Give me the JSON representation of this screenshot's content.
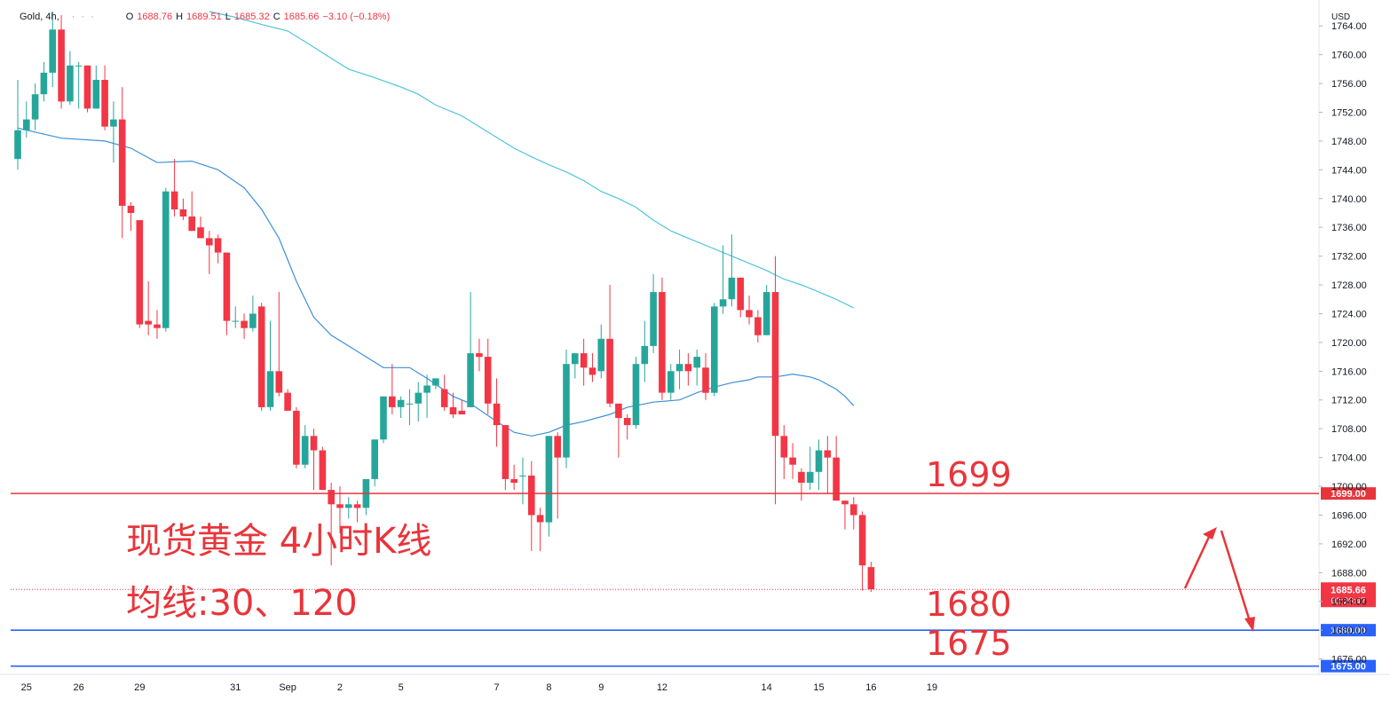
{
  "header": {
    "symbol": "Gold, 4h,",
    "dots": "· · ·",
    "o_label": "O",
    "o_value": "1688.76",
    "h_label": "H",
    "h_value": "1689.51",
    "l_label": "L",
    "l_value": "1685.32",
    "c_label": "C",
    "c_value": "1685.66",
    "change": "−3.10 (−0.18%)"
  },
  "annotations": {
    "title_line1": "现货黄金 4小时K线",
    "title_line2": "均线:30、120",
    "level_1699": "1699",
    "level_1680": "1680",
    "level_1675": "1675"
  },
  "colors": {
    "up": "#26a69a",
    "down": "#f23645",
    "red_line": "#e8353b",
    "blue_line": "#2962ff",
    "ma30": "#3d8fd9",
    "ma120": "#4fc4dc",
    "annotation": "#e8353b"
  },
  "chart_data": {
    "type": "candlestick",
    "currency": "USD",
    "timeframe": "4h",
    "ylim": [
      1672,
      1766
    ],
    "y_ticks": [
      1676,
      1680,
      1684,
      1688,
      1692,
      1696,
      1700,
      1704,
      1708,
      1712,
      1716,
      1720,
      1724,
      1728,
      1732,
      1736,
      1740,
      1744,
      1748,
      1752,
      1756,
      1760,
      1764
    ],
    "x_ticks": [
      {
        "label": "25",
        "index": 1
      },
      {
        "label": "26",
        "index": 7
      },
      {
        "label": "29",
        "index": 14
      },
      {
        "label": "31",
        "index": 25
      },
      {
        "label": "Sep",
        "index": 31
      },
      {
        "label": "2",
        "index": 37
      },
      {
        "label": "5",
        "index": 44
      },
      {
        "label": "7",
        "index": 55
      },
      {
        "label": "8",
        "index": 61
      },
      {
        "label": "9",
        "index": 67
      },
      {
        "label": "12",
        "index": 74
      },
      {
        "label": "14",
        "index": 86
      },
      {
        "label": "15",
        "index": 92
      },
      {
        "label": "16",
        "index": 98
      },
      {
        "label": "19",
        "index": 105
      }
    ],
    "candles": [
      {
        "o": 1745.5,
        "h": 1756.5,
        "l": 1744,
        "c": 1749.5
      },
      {
        "o": 1749.5,
        "h": 1753.5,
        "l": 1748.5,
        "c": 1751
      },
      {
        "o": 1751,
        "h": 1756,
        "l": 1749.5,
        "c": 1754.5
      },
      {
        "o": 1754.5,
        "h": 1759,
        "l": 1753.5,
        "c": 1757.5
      },
      {
        "o": 1757.5,
        "h": 1766,
        "l": 1755.5,
        "c": 1763.5
      },
      {
        "o": 1763.5,
        "h": 1765.5,
        "l": 1752.5,
        "c": 1753.5
      },
      {
        "o": 1753.5,
        "h": 1760.5,
        "l": 1753,
        "c": 1758.5
      },
      {
        "o": 1758.5,
        "h": 1759,
        "l": 1752.5,
        "c": 1758.5
      },
      {
        "o": 1758.5,
        "h": 1758.5,
        "l": 1752,
        "c": 1752.5
      },
      {
        "o": 1752.5,
        "h": 1758.5,
        "l": 1752.5,
        "c": 1756.5
      },
      {
        "o": 1756.5,
        "h": 1758.5,
        "l": 1749.5,
        "c": 1750
      },
      {
        "o": 1750,
        "h": 1753.5,
        "l": 1745,
        "c": 1751
      },
      {
        "o": 1751,
        "h": 1755.5,
        "l": 1734.5,
        "c": 1739
      },
      {
        "o": 1739,
        "h": 1739.5,
        "l": 1735.5,
        "c": 1738
      },
      {
        "o": 1737,
        "h": 1737,
        "l": 1722,
        "c": 1722.5
      },
      {
        "o": 1723,
        "h": 1728.5,
        "l": 1721,
        "c": 1722.5
      },
      {
        "o": 1722.5,
        "h": 1724.5,
        "l": 1720.5,
        "c": 1722
      },
      {
        "o": 1722,
        "h": 1741.5,
        "l": 1721.5,
        "c": 1741
      },
      {
        "o": 1741,
        "h": 1745.5,
        "l": 1737.5,
        "c": 1738.5
      },
      {
        "o": 1738.5,
        "h": 1740,
        "l": 1737,
        "c": 1737.5
      },
      {
        "o": 1737.5,
        "h": 1741,
        "l": 1735.5,
        "c": 1735.5
      },
      {
        "o": 1736,
        "h": 1737.5,
        "l": 1734.5,
        "c": 1734.5
      },
      {
        "o": 1734.5,
        "h": 1735.5,
        "l": 1729.5,
        "c": 1733.5
      },
      {
        "o": 1734.5,
        "h": 1735,
        "l": 1731,
        "c": 1732.5
      },
      {
        "o": 1732.5,
        "h": 1732.5,
        "l": 1721,
        "c": 1723
      },
      {
        "o": 1723,
        "h": 1725,
        "l": 1722,
        "c": 1723
      },
      {
        "o": 1723,
        "h": 1724,
        "l": 1720.5,
        "c": 1722
      },
      {
        "o": 1722,
        "h": 1726.5,
        "l": 1721.5,
        "c": 1724
      },
      {
        "o": 1725,
        "h": 1725.5,
        "l": 1710.5,
        "c": 1711
      },
      {
        "o": 1711,
        "h": 1723,
        "l": 1710.5,
        "c": 1716
      },
      {
        "o": 1716,
        "h": 1727,
        "l": 1712.5,
        "c": 1713
      },
      {
        "o": 1713,
        "h": 1713.5,
        "l": 1710.5,
        "c": 1710.5
      },
      {
        "o": 1710.5,
        "h": 1711,
        "l": 1702.5,
        "c": 1703
      },
      {
        "o": 1703,
        "h": 1708.5,
        "l": 1702.5,
        "c": 1707
      },
      {
        "o": 1707,
        "h": 1708,
        "l": 1699.5,
        "c": 1705
      },
      {
        "o": 1705,
        "h": 1705.5,
        "l": 1699.5,
        "c": 1699.5
      },
      {
        "o": 1699.5,
        "h": 1700.5,
        "l": 1689,
        "c": 1697.5
      },
      {
        "o": 1697.5,
        "h": 1700,
        "l": 1693.5,
        "c": 1697
      },
      {
        "o": 1697,
        "h": 1698.5,
        "l": 1695.5,
        "c": 1697.5
      },
      {
        "o": 1697.5,
        "h": 1698,
        "l": 1695,
        "c": 1697
      },
      {
        "o": 1697,
        "h": 1701,
        "l": 1696,
        "c": 1701
      },
      {
        "o": 1701,
        "h": 1706.5,
        "l": 1700,
        "c": 1706.5
      },
      {
        "o": 1706.5,
        "h": 1712.5,
        "l": 1706,
        "c": 1712.5
      },
      {
        "o": 1712.5,
        "h": 1717,
        "l": 1710,
        "c": 1711
      },
      {
        "o": 1711,
        "h": 1712.5,
        "l": 1709.5,
        "c": 1712
      },
      {
        "o": 1711.5,
        "h": 1713.5,
        "l": 1708.5,
        "c": 1711.5
      },
      {
        "o": 1711.5,
        "h": 1714.5,
        "l": 1709,
        "c": 1713
      },
      {
        "o": 1713,
        "h": 1715.5,
        "l": 1709.5,
        "c": 1714
      },
      {
        "o": 1714,
        "h": 1715,
        "l": 1713.5,
        "c": 1715
      },
      {
        "o": 1713.5,
        "h": 1715.5,
        "l": 1710.5,
        "c": 1711
      },
      {
        "o": 1711,
        "h": 1713,
        "l": 1709.5,
        "c": 1710
      },
      {
        "o": 1710.5,
        "h": 1712,
        "l": 1710,
        "c": 1710
      },
      {
        "o": 1711,
        "h": 1727,
        "l": 1711,
        "c": 1718.5
      },
      {
        "o": 1718.5,
        "h": 1720.5,
        "l": 1716,
        "c": 1718
      },
      {
        "o": 1718,
        "h": 1720.5,
        "l": 1710,
        "c": 1711.5
      },
      {
        "o": 1711.5,
        "h": 1715,
        "l": 1705.5,
        "c": 1708.5
      },
      {
        "o": 1708.5,
        "h": 1708.5,
        "l": 1699.5,
        "c": 1701
      },
      {
        "o": 1701,
        "h": 1703,
        "l": 1699.5,
        "c": 1700.5
      },
      {
        "o": 1701.5,
        "h": 1704,
        "l": 1697.5,
        "c": 1701.5
      },
      {
        "o": 1701.5,
        "h": 1703.5,
        "l": 1691,
        "c": 1696
      },
      {
        "o": 1696,
        "h": 1697,
        "l": 1691,
        "c": 1695
      },
      {
        "o": 1695,
        "h": 1707,
        "l": 1693,
        "c": 1707
      },
      {
        "o": 1707,
        "h": 1707.5,
        "l": 1695.5,
        "c": 1704
      },
      {
        "o": 1704,
        "h": 1719,
        "l": 1702.5,
        "c": 1717
      },
      {
        "o": 1717,
        "h": 1718.5,
        "l": 1715,
        "c": 1718.5
      },
      {
        "o": 1718.5,
        "h": 1720.5,
        "l": 1714,
        "c": 1716.5
      },
      {
        "o": 1716.5,
        "h": 1718.5,
        "l": 1714.5,
        "c": 1715.5
      },
      {
        "o": 1716,
        "h": 1722.5,
        "l": 1715,
        "c": 1720.5
      },
      {
        "o": 1720.5,
        "h": 1728,
        "l": 1711,
        "c": 1711.5
      },
      {
        "o": 1711.5,
        "h": 1711.5,
        "l": 1704,
        "c": 1709.5
      },
      {
        "o": 1709.5,
        "h": 1710,
        "l": 1706.5,
        "c": 1708.5
      },
      {
        "o": 1708.5,
        "h": 1718,
        "l": 1708,
        "c": 1717
      },
      {
        "o": 1717,
        "h": 1723,
        "l": 1714.5,
        "c": 1719.5
      },
      {
        "o": 1719.5,
        "h": 1729.5,
        "l": 1718.5,
        "c": 1727
      },
      {
        "o": 1727,
        "h": 1729,
        "l": 1712,
        "c": 1713
      },
      {
        "o": 1713,
        "h": 1717,
        "l": 1712,
        "c": 1716
      },
      {
        "o": 1716,
        "h": 1719,
        "l": 1713.5,
        "c": 1717
      },
      {
        "o": 1717,
        "h": 1718.5,
        "l": 1714,
        "c": 1716
      },
      {
        "o": 1716.5,
        "h": 1719,
        "l": 1714,
        "c": 1718
      },
      {
        "o": 1716.5,
        "h": 1718.5,
        "l": 1712,
        "c": 1713
      },
      {
        "o": 1713,
        "h": 1725.5,
        "l": 1712.5,
        "c": 1725
      },
      {
        "o": 1725,
        "h": 1733.5,
        "l": 1724,
        "c": 1726
      },
      {
        "o": 1726,
        "h": 1735,
        "l": 1725,
        "c": 1729
      },
      {
        "o": 1729,
        "h": 1729,
        "l": 1723.5,
        "c": 1724.5
      },
      {
        "o": 1724.5,
        "h": 1726.5,
        "l": 1722.5,
        "c": 1723.5
      },
      {
        "o": 1723.5,
        "h": 1724.5,
        "l": 1720,
        "c": 1721
      },
      {
        "o": 1721,
        "h": 1728,
        "l": 1721,
        "c": 1727
      },
      {
        "o": 1727,
        "h": 1732,
        "l": 1697.5,
        "c": 1707
      },
      {
        "o": 1707,
        "h": 1708.5,
        "l": 1701,
        "c": 1704
      },
      {
        "o": 1704,
        "h": 1706,
        "l": 1701,
        "c": 1703
      },
      {
        "o": 1702,
        "h": 1702.5,
        "l": 1698,
        "c": 1700.5
      },
      {
        "o": 1700.5,
        "h": 1705.5,
        "l": 1699.5,
        "c": 1702
      },
      {
        "o": 1702,
        "h": 1706.5,
        "l": 1699.5,
        "c": 1705
      },
      {
        "o": 1705,
        "h": 1707,
        "l": 1699,
        "c": 1704
      },
      {
        "o": 1704,
        "h": 1707,
        "l": 1698.5,
        "c": 1698
      },
      {
        "o": 1698,
        "h": 1698,
        "l": 1694,
        "c": 1697.5
      },
      {
        "o": 1697.5,
        "h": 1698.5,
        "l": 1694,
        "c": 1696
      },
      {
        "o": 1696,
        "h": 1696.5,
        "l": 1685.5,
        "c": 1689
      },
      {
        "o": 1688.76,
        "h": 1689.51,
        "l": 1685.32,
        "c": 1685.66
      }
    ],
    "series": [
      {
        "name": "MA30",
        "color": "#3d8fd9",
        "points": [
          [
            0,
            1749.8
          ],
          [
            5,
            1748.4
          ],
          [
            10,
            1748
          ],
          [
            13,
            1747
          ],
          [
            16,
            1745
          ],
          [
            20,
            1745.2
          ],
          [
            23,
            1744
          ],
          [
            26,
            1741.5
          ],
          [
            28,
            1738.5
          ],
          [
            30,
            1734.5
          ],
          [
            32,
            1728.5
          ],
          [
            34,
            1723.5
          ],
          [
            36,
            1721
          ],
          [
            38,
            1719.5
          ],
          [
            40,
            1718
          ],
          [
            42,
            1716.5
          ],
          [
            45,
            1716.5
          ],
          [
            47,
            1715
          ],
          [
            50,
            1712.5
          ],
          [
            52,
            1711.5
          ],
          [
            55,
            1709
          ],
          [
            57,
            1707.5
          ],
          [
            59,
            1707
          ],
          [
            61,
            1707.5
          ],
          [
            63,
            1708.5
          ],
          [
            65,
            1709
          ],
          [
            68,
            1710
          ],
          [
            70,
            1711
          ],
          [
            73,
            1711.7
          ],
          [
            76,
            1712
          ],
          [
            78,
            1713
          ],
          [
            80,
            1713.8
          ],
          [
            82,
            1714.4
          ],
          [
            84,
            1714.8
          ],
          [
            85,
            1715.2
          ],
          [
            87,
            1715.2
          ],
          [
            89,
            1715.6
          ],
          [
            91,
            1715.2
          ],
          [
            92,
            1714.8
          ],
          [
            94,
            1713.5
          ],
          [
            95,
            1712.5
          ],
          [
            96,
            1711.2
          ]
        ]
      },
      {
        "name": "MA120",
        "color": "#4fc4dc",
        "points": [
          [
            22,
            1766
          ],
          [
            25,
            1765.2
          ],
          [
            28,
            1764.2
          ],
          [
            31,
            1763.3
          ],
          [
            33,
            1761.8
          ],
          [
            36,
            1759.5
          ],
          [
            38,
            1758
          ],
          [
            41,
            1756.8
          ],
          [
            44,
            1755.5
          ],
          [
            46,
            1754.5
          ],
          [
            48,
            1753
          ],
          [
            51,
            1751.5
          ],
          [
            53,
            1750
          ],
          [
            55,
            1748.5
          ],
          [
            57,
            1747
          ],
          [
            59,
            1745.8
          ],
          [
            61,
            1744.7
          ],
          [
            63,
            1743.7
          ],
          [
            65,
            1742.5
          ],
          [
            67,
            1741
          ],
          [
            69,
            1740
          ],
          [
            71,
            1738.8
          ],
          [
            73,
            1737
          ],
          [
            75,
            1735.5
          ],
          [
            77,
            1734.5
          ],
          [
            79,
            1733.5
          ],
          [
            82,
            1732
          ],
          [
            84,
            1731
          ],
          [
            86,
            1730
          ],
          [
            88,
            1728.8
          ],
          [
            90,
            1728
          ],
          [
            92,
            1727
          ],
          [
            94,
            1726
          ],
          [
            96,
            1724.8
          ]
        ]
      }
    ],
    "hlines": [
      {
        "value": 1699,
        "label": "1699.00",
        "color": "#e8353b"
      },
      {
        "value": 1680,
        "label": "1680.00",
        "color": "#2962ff"
      },
      {
        "value": 1675,
        "label": "1675.00",
        "color": "#2962ff"
      }
    ],
    "last_price": {
      "value": 1685.66,
      "label": "1685.66",
      "countdown": "02:26:47"
    }
  }
}
